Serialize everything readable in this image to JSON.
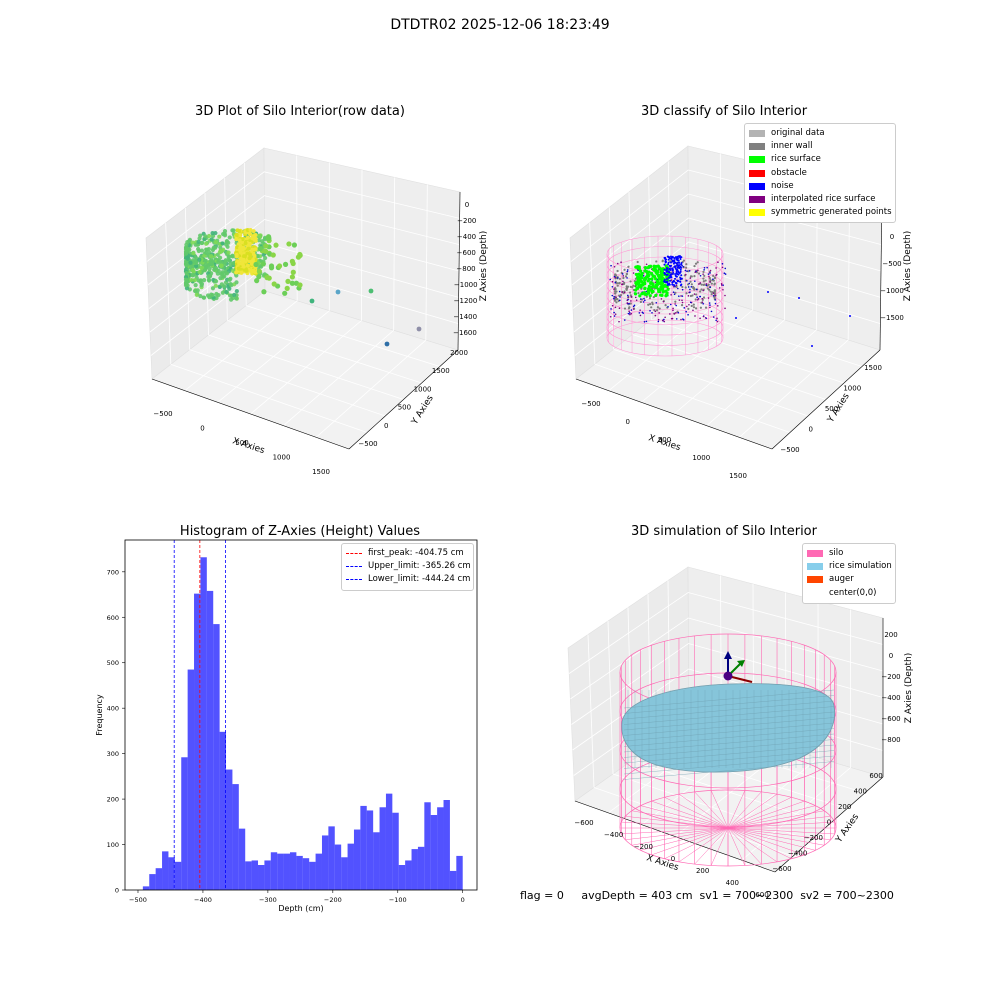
{
  "figure": {
    "title": "DTDTR02 2025-12-06 18:23:49",
    "status_line": "flag = 0     avgDepth = 403 cm  sv1 = 700~2300  sv2 = 700~2300"
  },
  "panels": {
    "raw": {
      "title": "3D Plot of Silo Interior(row data)",
      "xlabel": "X Axies",
      "ylabel": "Y Axies",
      "zlabel": "Z Axies (Depth)",
      "xticks": [
        "−500",
        "0",
        "500",
        "1000",
        "1500"
      ],
      "yticks": [
        "−500",
        "0",
        "500",
        "1000",
        "1500",
        "2000"
      ],
      "zticks": [
        "0",
        "−200",
        "−400",
        "−600",
        "−800",
        "−1000",
        "−1200",
        "−1400",
        "−1600"
      ]
    },
    "classify": {
      "title": "3D classify of Silo Interior",
      "xlabel": "X Axies",
      "ylabel": "Y Axies",
      "zlabel": "Z Axies (Depth)",
      "xticks": [
        "−500",
        "0",
        "500",
        "1000",
        "1500"
      ],
      "yticks": [
        "−500",
        "0",
        "500",
        "1000",
        "1500"
      ],
      "zticks": [
        "0",
        "−500",
        "−1000",
        "−1500"
      ],
      "legend": [
        {
          "label": "original data",
          "color": "#b3b3b3"
        },
        {
          "label": "inner wall",
          "color": "#808080"
        },
        {
          "label": "rice surface",
          "color": "#00ff00"
        },
        {
          "label": "obstacle",
          "color": "#ff0000"
        },
        {
          "label": "noise",
          "color": "#0000ff"
        },
        {
          "label": "interpolated rice surface",
          "color": "#800080"
        },
        {
          "label": "symmetric generated points",
          "color": "#ffff00"
        }
      ]
    },
    "histogram": {
      "title": "Histogram of Z-Axies (Height) Values",
      "legend": [
        {
          "label": "first_peak: -404.75 cm",
          "color": "#ff0000"
        },
        {
          "label": "Upper_limit: -365.26 cm",
          "color": "#0000ff"
        },
        {
          "label": "Lower_limit: -444.24 cm",
          "color": "#0000ff"
        }
      ]
    },
    "simulation": {
      "title": "3D simulation of Silo Interior",
      "xlabel": "X Axies",
      "ylabel": "Y Axies",
      "zlabel": "Z Axies (Depth)",
      "xticks": [
        "−600",
        "−400",
        "−200",
        "0",
        "200",
        "400",
        "600"
      ],
      "yticks": [
        "−600",
        "−400",
        "−200",
        "0",
        "200",
        "400",
        "600"
      ],
      "zticks": [
        "200",
        "0",
        "−200",
        "−400",
        "−600",
        "−800"
      ],
      "legend": [
        {
          "label": "silo",
          "color": "#ff69b4"
        },
        {
          "label": "rice simulation",
          "color": "#87ceeb"
        },
        {
          "label": "auger",
          "color": "#ff4500"
        },
        {
          "label": "center(0,0)",
          "color": ""
        }
      ]
    }
  },
  "chart_data": {
    "type": "bar",
    "title": "Histogram of Z-Axies (Height) Values",
    "xlabel": "Depth (cm)",
    "ylabel": "Frequency",
    "xlim": [
      -520,
      22
    ],
    "ylim": [
      0,
      770
    ],
    "xticks": [
      -500,
      -400,
      -300,
      -200,
      -100,
      0
    ],
    "yticks": [
      0,
      100,
      200,
      300,
      400,
      500,
      600,
      700
    ],
    "bar_color": "#0000ff",
    "bin_width": 9.85,
    "bin_start": -492.5,
    "values": [
      8,
      35,
      48,
      85,
      72,
      62,
      292,
      485,
      652,
      732,
      658,
      585,
      348,
      265,
      233,
      135,
      63,
      65,
      55,
      65,
      83,
      80,
      80,
      83,
      75,
      70,
      62,
      80,
      120,
      140,
      100,
      72,
      102,
      133,
      185,
      175,
      127,
      182,
      212,
      170,
      55,
      65,
      90,
      95,
      193,
      165,
      182,
      198,
      42,
      75
    ],
    "vlines": [
      {
        "x": -404.75,
        "color": "#ff0000",
        "label": "first_peak: -404.75 cm"
      },
      {
        "x": -365.26,
        "color": "#0000ff",
        "label": "Upper_limit: -365.26 cm"
      },
      {
        "x": -444.24,
        "color": "#0000ff",
        "label": "Lower_limit: -444.24 cm"
      }
    ],
    "legend_position": "upper right",
    "grid": false
  }
}
